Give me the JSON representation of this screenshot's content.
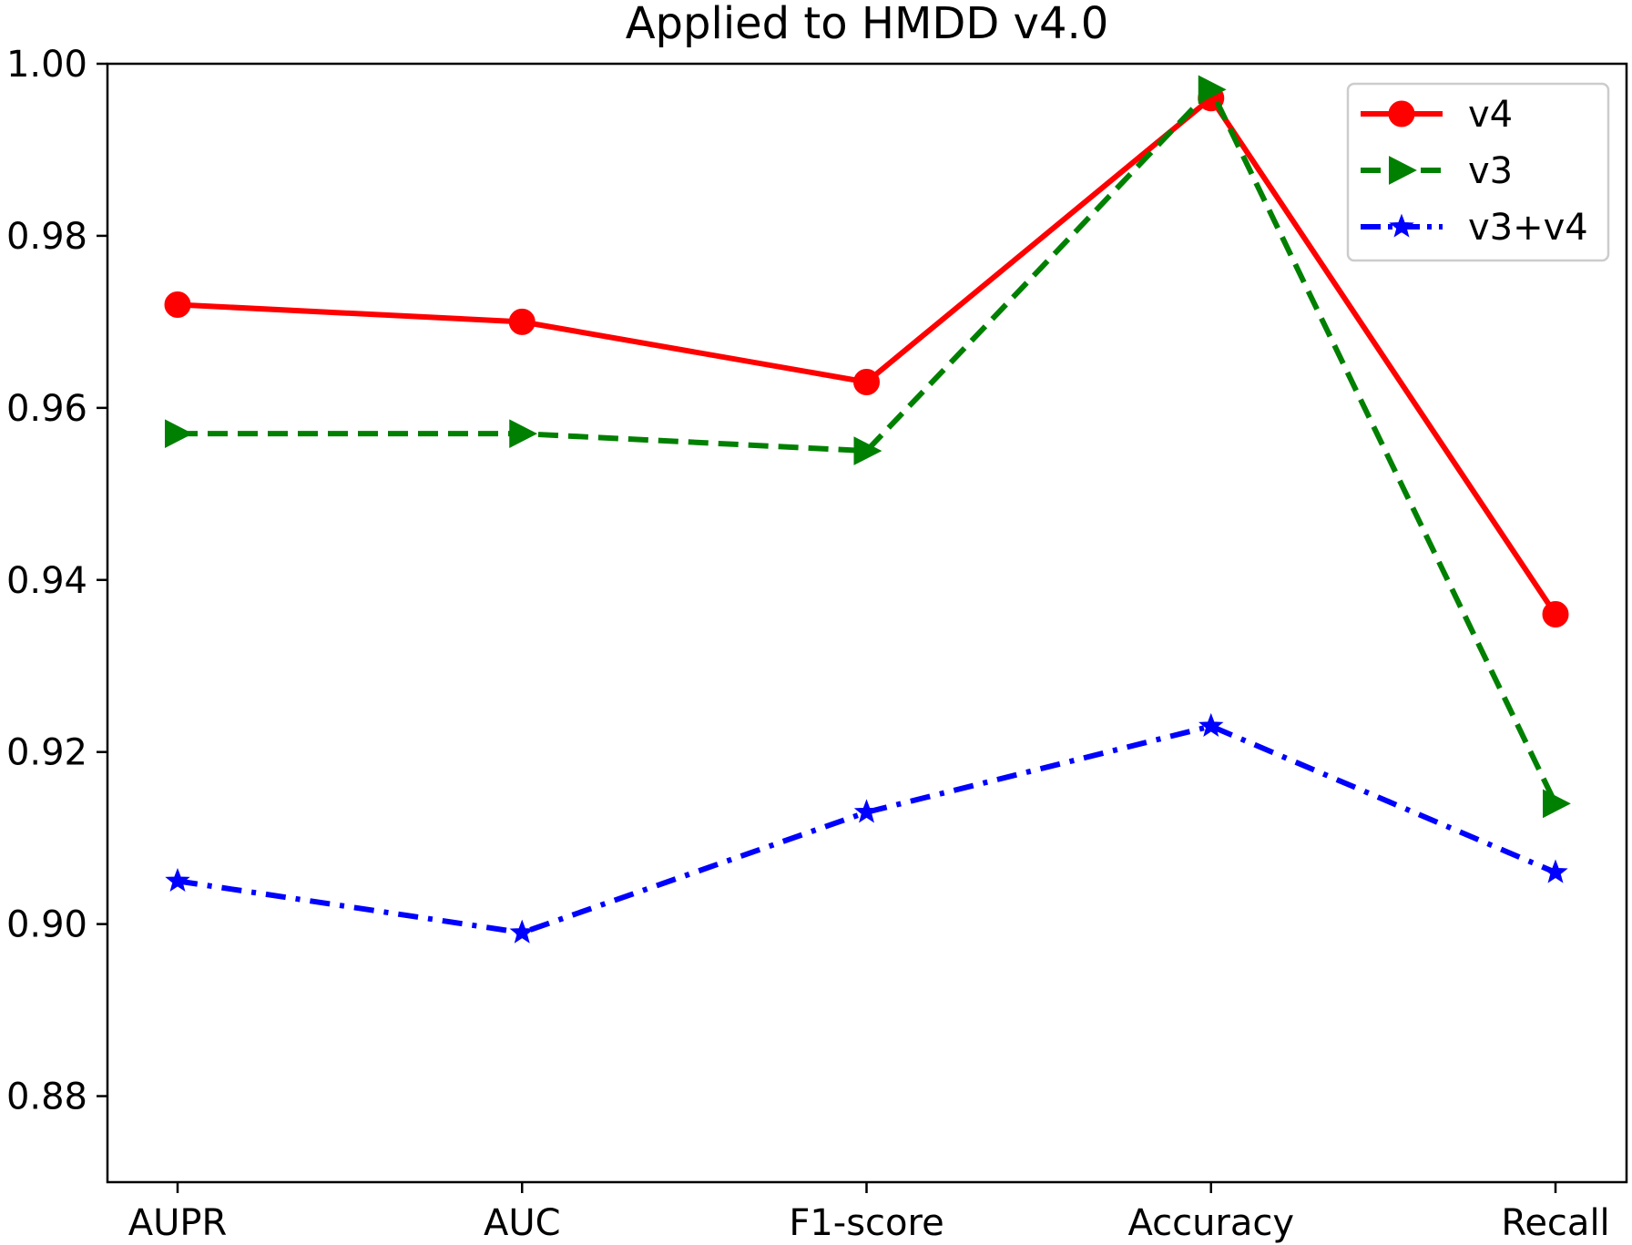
{
  "chart_data": {
    "type": "line",
    "title": "Applied to HMDD v4.0",
    "xlabel": "",
    "ylabel": "",
    "categories": [
      "AUPR",
      "AUC",
      "F1-score",
      "Accuracy",
      "Recall"
    ],
    "ylim": [
      0.87,
      1.0
    ],
    "yticks": [
      0.88,
      0.9,
      0.92,
      0.94,
      0.96,
      0.98,
      1.0
    ],
    "ytick_labels": [
      "0.88",
      "0.90",
      "0.92",
      "0.94",
      "0.96",
      "0.98",
      "1.00"
    ],
    "grid": false,
    "legend_position": "top-right",
    "series": [
      {
        "name": "v4",
        "values": [
          0.972,
          0.97,
          0.963,
          0.996,
          0.936
        ],
        "color": "#ff0000",
        "line_style": "solid",
        "marker": "circle"
      },
      {
        "name": "v3",
        "values": [
          0.957,
          0.957,
          0.955,
          0.997,
          0.914
        ],
        "color": "#008000",
        "line_style": "dashed",
        "marker": "triangle-right"
      },
      {
        "name": "v3+v4",
        "values": [
          0.905,
          0.899,
          0.913,
          0.923,
          0.906
        ],
        "color": "#0000ff",
        "line_style": "dashdot",
        "marker": "star"
      }
    ]
  }
}
